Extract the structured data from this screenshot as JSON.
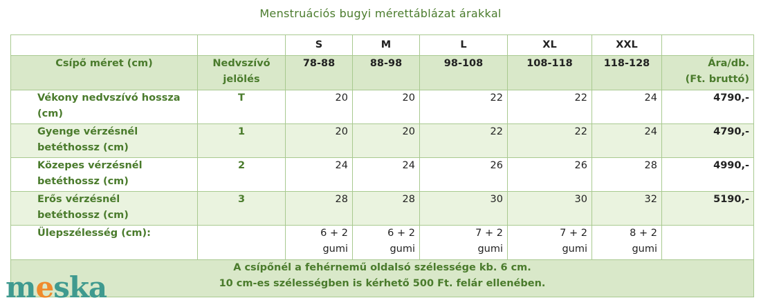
{
  "title": "Menstruációs  bugyi  mérettáblázat  árakkal",
  "sizes": [
    "S",
    "M",
    "L",
    "XL",
    "XXL"
  ],
  "header": {
    "hip": "Csípő méret (cm)",
    "absorbent_line1": "Nedvszívó",
    "absorbent_line2": "jelölés",
    "ranges": [
      "78-88",
      "88-98",
      "98-108",
      "108-118",
      "118-128"
    ],
    "price_line1": "Ára/db.",
    "price_line2": "(Ft. bruttó)"
  },
  "rows": [
    {
      "label1": "Vékony  nedvszívó hossza",
      "label2": "(cm)",
      "code": "T",
      "values": [
        "20",
        "20",
        "22",
        "22",
        "24"
      ],
      "price": "4790,-"
    },
    {
      "label1": "Gyenge vérzésnél",
      "label2": "betéthossz (cm)",
      "code": "1",
      "values": [
        "20",
        "20",
        "22",
        "22",
        "24"
      ],
      "price": "4790,-"
    },
    {
      "label1": "Közepes vérzésnél",
      "label2": "betéthossz (cm)",
      "code": "2",
      "values": [
        "24",
        "24",
        "26",
        "26",
        "28"
      ],
      "price": "4990,-"
    },
    {
      "label1": "Erős vérzésnél",
      "label2": "betéthossz (cm)",
      "code": "3",
      "values": [
        "28",
        "28",
        "30",
        "30",
        "32"
      ],
      "price": "5190,-"
    }
  ],
  "gusset": {
    "label": "Ülepszélesség (cm):",
    "values": [
      {
        "line1": "6 + 2",
        "line2": "gumi"
      },
      {
        "line1": "6 + 2",
        "line2": "gumi"
      },
      {
        "line1": "7 + 2",
        "line2": "gumi"
      },
      {
        "line1": "7 + 2",
        "line2": "gumi"
      },
      {
        "line1": "8 + 2",
        "line2": "gumi"
      }
    ]
  },
  "notes": {
    "line1": "A csípőnél a fehérnemű oldalsó szélessége kb. 6 cm.",
    "line2": "10 cm-es szélességben is kérhető 500 Ft. felár ellenében."
  },
  "logo": {
    "text_a": "m",
    "text_e": "e",
    "text_b": "ska",
    "icon": "meska-logo"
  }
}
